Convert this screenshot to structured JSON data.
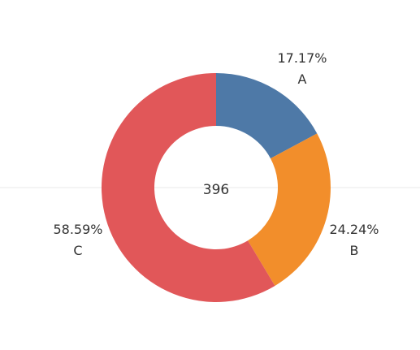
{
  "chart_data": {
    "type": "pie",
    "style": "donut",
    "center_text": "396",
    "slices": [
      {
        "label": "A",
        "value": 17.17,
        "value_text": "17.17%",
        "color": "#4e79a7"
      },
      {
        "label": "B",
        "value": 24.24,
        "value_text": "24.24%",
        "color": "#f28e2b"
      },
      {
        "label": "C",
        "value": 58.59,
        "value_text": "58.59%",
        "color": "#e15759"
      }
    ]
  }
}
